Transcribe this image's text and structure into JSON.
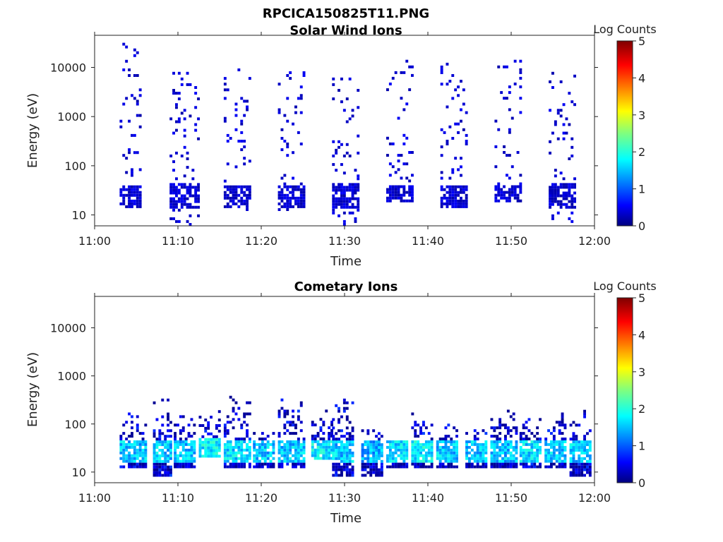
{
  "figure_title": "RPCICA150825T11.PNG",
  "chart_data": [
    {
      "type": "heatmap",
      "title": "Solar Wind Ions",
      "xlabel": "Time",
      "ylabel": "Energy (eV)",
      "x_scale": "time",
      "y_scale": "log",
      "xlim": [
        "11:00",
        "12:00"
      ],
      "ylim": [
        6,
        45000
      ],
      "x_ticks": [
        "11:00",
        "11:10",
        "11:20",
        "11:30",
        "11:40",
        "11:50",
        "12:00"
      ],
      "y_ticks": [
        "10",
        "100",
        "1000",
        "10000"
      ],
      "colorbar": {
        "label": "Log Counts",
        "range": [
          0,
          5
        ],
        "ticks": [
          "0",
          "1",
          "2",
          "3",
          "4",
          "5"
        ],
        "colormap": "jet"
      },
      "note_values": "z = log10(counts); bursts give time span (minutes past 11:00), energy range and typical z",
      "bursts": [
        {
          "t_start": 3.0,
          "t_end": 5.5,
          "e_low_eV": 12,
          "e_high_eV": 30000,
          "z": 0.3
        },
        {
          "t_start": 9.0,
          "t_end": 12.5,
          "e_low_eV": 6,
          "e_high_eV": 10000,
          "z": 0.3
        },
        {
          "t_start": 15.5,
          "t_end": 18.5,
          "e_low_eV": 12,
          "e_high_eV": 10000,
          "z": 0.3
        },
        {
          "t_start": 22.0,
          "t_end": 25.0,
          "e_low_eV": 12,
          "e_high_eV": 10000,
          "z": 0.3
        },
        {
          "t_start": 28.5,
          "t_end": 31.5,
          "e_low_eV": 6,
          "e_high_eV": 6000,
          "z": 0.3
        },
        {
          "t_start": 35.0,
          "t_end": 38.0,
          "e_low_eV": 18,
          "e_high_eV": 13000,
          "z": 0.3
        },
        {
          "t_start": 41.5,
          "t_end": 44.5,
          "e_low_eV": 12,
          "e_high_eV": 12000,
          "z": 0.3
        },
        {
          "t_start": 48.0,
          "t_end": 51.0,
          "e_low_eV": 18,
          "e_high_eV": 14000,
          "z": 0.3
        },
        {
          "t_start": 54.5,
          "t_end": 57.5,
          "e_low_eV": 6,
          "e_high_eV": 8000,
          "z": 0.3
        }
      ]
    },
    {
      "type": "heatmap",
      "title": "Cometary Ions",
      "xlabel": "Time",
      "ylabel": "Energy (eV)",
      "x_scale": "time",
      "y_scale": "log",
      "xlim": [
        "11:00",
        "12:00"
      ],
      "ylim": [
        6,
        45000
      ],
      "x_ticks": [
        "11:00",
        "11:10",
        "11:20",
        "11:30",
        "11:40",
        "11:50",
        "12:00"
      ],
      "y_ticks": [
        "10",
        "100",
        "1000",
        "10000"
      ],
      "colorbar": {
        "label": "Log Counts",
        "range": [
          0,
          5
        ],
        "ticks": [
          "0",
          "1",
          "2",
          "3",
          "4",
          "5"
        ],
        "colormap": "jet"
      },
      "note_values": "z = log10(counts); bursts give time span (minutes past 11:00), energy range and peak z",
      "bursts": [
        {
          "t_start": 3.0,
          "t_end": 6.0,
          "e_low_eV": 12,
          "e_high_eV": 170,
          "z": 2.0
        },
        {
          "t_start": 7.0,
          "t_end": 9.0,
          "e_low_eV": 8,
          "e_high_eV": 300,
          "z": 2.0
        },
        {
          "t_start": 9.5,
          "t_end": 12.0,
          "e_low_eV": 12,
          "e_high_eV": 200,
          "z": 2.0
        },
        {
          "t_start": 12.5,
          "t_end": 15.0,
          "e_low_eV": 20,
          "e_high_eV": 180,
          "z": 2.2
        },
        {
          "t_start": 15.5,
          "t_end": 18.5,
          "e_low_eV": 12,
          "e_high_eV": 350,
          "z": 2.1
        },
        {
          "t_start": 19.0,
          "t_end": 21.5,
          "e_low_eV": 12,
          "e_high_eV": 90,
          "z": 2.0
        },
        {
          "t_start": 22.0,
          "t_end": 25.0,
          "e_low_eV": 12,
          "e_high_eV": 300,
          "z": 2.0
        },
        {
          "t_start": 26.0,
          "t_end": 28.5,
          "e_low_eV": 18,
          "e_high_eV": 200,
          "z": 2.2
        },
        {
          "t_start": 28.5,
          "t_end": 31.0,
          "e_low_eV": 8,
          "e_high_eV": 350,
          "z": 2.0
        },
        {
          "t_start": 32.0,
          "t_end": 34.5,
          "e_low_eV": 8,
          "e_high_eV": 100,
          "z": 1.9
        },
        {
          "t_start": 35.0,
          "t_end": 37.5,
          "e_low_eV": 12,
          "e_high_eV": 60,
          "z": 2.1
        },
        {
          "t_start": 38.0,
          "t_end": 40.5,
          "e_low_eV": 12,
          "e_high_eV": 200,
          "z": 2.2
        },
        {
          "t_start": 41.0,
          "t_end": 43.5,
          "e_low_eV": 12,
          "e_high_eV": 100,
          "z": 2.0
        },
        {
          "t_start": 44.5,
          "t_end": 47.0,
          "e_low_eV": 12,
          "e_high_eV": 80,
          "z": 2.0
        },
        {
          "t_start": 47.5,
          "t_end": 50.5,
          "e_low_eV": 12,
          "e_high_eV": 200,
          "z": 2.0
        },
        {
          "t_start": 51.0,
          "t_end": 53.5,
          "e_low_eV": 12,
          "e_high_eV": 130,
          "z": 2.1
        },
        {
          "t_start": 54.0,
          "t_end": 56.5,
          "e_low_eV": 12,
          "e_high_eV": 200,
          "z": 2.0
        },
        {
          "t_start": 57.0,
          "t_end": 59.5,
          "e_low_eV": 8,
          "e_high_eV": 180,
          "z": 2.0
        }
      ]
    }
  ]
}
